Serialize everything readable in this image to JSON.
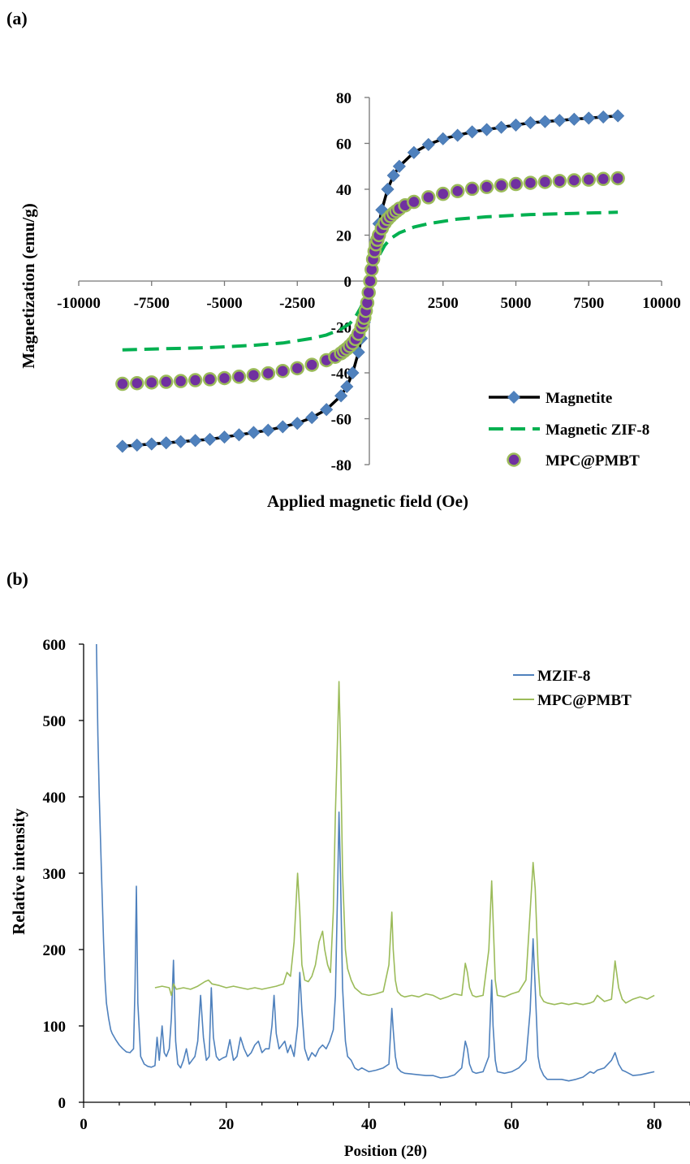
{
  "chart_data": [
    {
      "panel_label": "(a)",
      "type": "scatter",
      "xlabel": "Applied magnetic field (Oe)",
      "ylabel": "Magnetization (emu/g)",
      "xlim": [
        -10000,
        10000
      ],
      "ylim": [
        -80,
        80
      ],
      "x_ticks": [
        -10000,
        -7500,
        -5000,
        -2500,
        0,
        2500,
        5000,
        7500,
        10000
      ],
      "y_ticks": [
        -80,
        -60,
        -40,
        -20,
        0,
        20,
        40,
        60,
        80
      ],
      "legend_position": "bottom-right",
      "series": [
        {
          "name": "Magnetite",
          "style": "line with diamond markers",
          "line_color": "#000000",
          "marker_color": "#4F81BD",
          "x": [
            -8500,
            -8000,
            -7500,
            -7000,
            -6500,
            -6000,
            -5500,
            -5000,
            -4500,
            -4000,
            -3500,
            -3000,
            -2500,
            -2000,
            -1500,
            -1000,
            -800,
            -600,
            -400,
            -300,
            -200,
            -150,
            -100,
            -50,
            0,
            50,
            100,
            150,
            200,
            300,
            400,
            600,
            800,
            1000,
            1500,
            2000,
            2500,
            3000,
            3500,
            4000,
            4500,
            5000,
            5500,
            6000,
            6500,
            7000,
            7500,
            8000,
            8500
          ],
          "y": [
            -72,
            -71.5,
            -71,
            -70.5,
            -70,
            -69.5,
            -69,
            -68,
            -67,
            -66,
            -65,
            -63.5,
            -62,
            -59.5,
            -56,
            -50,
            -46,
            -40,
            -31,
            -25,
            -18,
            -14,
            -9.5,
            -5,
            0,
            5,
            9.5,
            14,
            18,
            25,
            31,
            40,
            46,
            50,
            56,
            59.5,
            62,
            63.5,
            65,
            66,
            67,
            68,
            69,
            69.5,
            70,
            70.5,
            71,
            71.5,
            72
          ]
        },
        {
          "name": "Magnetic ZIF-8",
          "style": "dashed line",
          "line_color": "#00B050",
          "x": [
            -8500,
            -7000,
            -5500,
            -4000,
            -3000,
            -2000,
            -1500,
            -1000,
            -700,
            -500,
            -300,
            -150,
            0,
            150,
            300,
            500,
            700,
            1000,
            1500,
            2000,
            3000,
            4000,
            5500,
            7000,
            8500
          ],
          "y": [
            -30,
            -29.5,
            -29,
            -28,
            -27,
            -25,
            -23.5,
            -21,
            -18.5,
            -15.5,
            -11,
            -6,
            0,
            6,
            11,
            15.5,
            18.5,
            21,
            23.5,
            25,
            27,
            28,
            29,
            29.5,
            30
          ]
        },
        {
          "name": "MPC@PMBT",
          "style": "circle markers",
          "marker_color": "#7030A0",
          "marker_stroke": "#9BBB59",
          "x": [
            -8500,
            -8000,
            -7500,
            -7000,
            -6500,
            -6000,
            -5500,
            -5000,
            -4500,
            -4000,
            -3500,
            -3000,
            -2500,
            -2000,
            -1500,
            -1200,
            -1000,
            -900,
            -800,
            -700,
            -600,
            -500,
            -400,
            -300,
            -250,
            -200,
            -150,
            -100,
            -50,
            0,
            50,
            100,
            150,
            200,
            250,
            300,
            400,
            500,
            600,
            700,
            800,
            900,
            1000,
            1200,
            1500,
            2000,
            2500,
            3000,
            3500,
            4000,
            4500,
            5000,
            5500,
            6000,
            6500,
            7000,
            7500,
            8000,
            8500
          ],
          "y": [
            -44.8,
            -44.5,
            -44.2,
            -43.9,
            -43.6,
            -43.2,
            -42.8,
            -42.3,
            -41.7,
            -41,
            -40.2,
            -39.2,
            -38,
            -36.5,
            -34.5,
            -33,
            -31.5,
            -30.5,
            -29.5,
            -28.3,
            -27,
            -25.3,
            -23,
            -20,
            -18,
            -16,
            -13,
            -9.5,
            -5,
            0,
            5,
            9.5,
            13,
            16,
            18,
            20,
            23,
            25.3,
            27,
            28.3,
            29.5,
            30.5,
            31.5,
            33,
            34.5,
            36.5,
            38,
            39.2,
            40.2,
            41,
            41.7,
            42.3,
            42.8,
            43.2,
            43.6,
            43.9,
            44.2,
            44.5,
            44.8
          ]
        }
      ]
    },
    {
      "panel_label": "(b)",
      "type": "line",
      "xlabel": "Position (2θ)",
      "ylabel": "Relative intensity",
      "xlim": [
        0,
        85
      ],
      "ylim": [
        0,
        600
      ],
      "x_ticks": [
        0,
        20,
        40,
        60,
        80
      ],
      "y_ticks": [
        0,
        100,
        200,
        300,
        400,
        500,
        600
      ],
      "grid": false,
      "legend_position": "top-right",
      "series": [
        {
          "name": "MZIF-8",
          "color": "#4F81BD",
          "x": [
            1.8,
            2.0,
            2.2,
            2.5,
            2.8,
            3.0,
            3.2,
            3.5,
            3.8,
            4.0,
            4.5,
            5.0,
            5.5,
            6.0,
            6.5,
            7.0,
            7.2,
            7.4,
            7.6,
            8.0,
            8.5,
            9.0,
            9.5,
            10.0,
            10.3,
            10.6,
            11.0,
            11.3,
            11.6,
            12.0,
            12.3,
            12.6,
            12.9,
            13.2,
            13.6,
            14.0,
            14.4,
            14.8,
            15.2,
            15.6,
            16.0,
            16.4,
            16.8,
            17.2,
            17.6,
            17.9,
            18.2,
            18.6,
            19.0,
            19.5,
            20.0,
            20.5,
            21.0,
            21.5,
            22.0,
            22.5,
            23.0,
            23.5,
            24.0,
            24.5,
            25.0,
            25.5,
            26.0,
            26.4,
            26.7,
            27.0,
            27.4,
            27.8,
            28.2,
            28.6,
            29.0,
            29.5,
            30.0,
            30.3,
            30.6,
            31.0,
            31.5,
            32.0,
            32.5,
            33.0,
            33.5,
            34.0,
            34.5,
            35.0,
            35.3,
            35.6,
            35.8,
            36.0,
            36.3,
            36.7,
            37.0,
            37.5,
            38.0,
            38.5,
            39.0,
            40.0,
            41.0,
            42.0,
            42.8,
            43.2,
            43.4,
            43.7,
            44.0,
            44.5,
            45.0,
            46.0,
            47.0,
            48.0,
            49.0,
            50.0,
            51.0,
            52.0,
            53.0,
            53.5,
            53.8,
            54.1,
            54.5,
            55.0,
            56.0,
            56.8,
            57.2,
            57.4,
            57.7,
            58.0,
            59.0,
            60.0,
            61.0,
            62.0,
            62.6,
            63.0,
            63.3,
            63.7,
            64.0,
            64.5,
            65.0,
            66.0,
            67.0,
            68.0,
            69.0,
            70.0,
            71.0,
            71.5,
            72.0,
            73.0,
            74.0,
            74.5,
            75.0,
            75.5,
            76.0,
            77.0,
            78.0,
            79.0,
            80.0
          ],
          "y": [
            600,
            480,
            400,
            300,
            210,
            160,
            130,
            110,
            95,
            90,
            82,
            75,
            70,
            66,
            65,
            70,
            150,
            283,
            130,
            60,
            50,
            47,
            46,
            48,
            85,
            55,
            100,
            65,
            60,
            70,
            110,
            186,
            80,
            50,
            45,
            55,
            70,
            50,
            55,
            60,
            80,
            140,
            85,
            55,
            60,
            150,
            85,
            60,
            55,
            58,
            60,
            82,
            55,
            60,
            85,
            70,
            60,
            65,
            75,
            80,
            65,
            70,
            70,
            100,
            140,
            90,
            70,
            75,
            80,
            65,
            75,
            60,
            100,
            170,
            120,
            70,
            55,
            65,
            60,
            70,
            75,
            70,
            80,
            95,
            140,
            280,
            380,
            300,
            150,
            80,
            60,
            55,
            45,
            42,
            45,
            40,
            42,
            45,
            50,
            123,
            95,
            60,
            45,
            40,
            38,
            37,
            36,
            35,
            35,
            32,
            33,
            36,
            45,
            80,
            70,
            50,
            40,
            38,
            40,
            60,
            160,
            100,
            55,
            40,
            38,
            40,
            45,
            55,
            120,
            214,
            150,
            60,
            45,
            35,
            30,
            30,
            30,
            28,
            30,
            33,
            40,
            38,
            42,
            45,
            55,
            65,
            50,
            42,
            40,
            35,
            36,
            38,
            40
          ]
        },
        {
          "name": "MPC@PMBT",
          "color": "#9BBB59",
          "x": [
            10.0,
            11.0,
            12.0,
            12.3,
            12.6,
            13.0,
            14.0,
            15.0,
            16.0,
            17.0,
            17.5,
            18.0,
            19.0,
            20.0,
            21.0,
            22.0,
            23.0,
            24.0,
            25.0,
            26.0,
            27.0,
            28.0,
            28.5,
            29.0,
            29.5,
            30.0,
            30.3,
            30.6,
            31.0,
            31.5,
            32.0,
            32.5,
            33.0,
            33.5,
            33.8,
            34.2,
            34.6,
            35.0,
            35.3,
            35.6,
            35.8,
            36.0,
            36.3,
            36.7,
            37.0,
            37.5,
            38.0,
            39.0,
            40.0,
            41.0,
            42.0,
            42.8,
            43.2,
            43.4,
            43.7,
            44.0,
            44.5,
            45.0,
            46.0,
            47.0,
            48.0,
            49.0,
            50.0,
            51.0,
            52.0,
            53.0,
            53.5,
            53.8,
            54.1,
            54.5,
            55.0,
            56.0,
            56.8,
            57.2,
            57.4,
            57.7,
            58.0,
            59.0,
            60.0,
            61.0,
            62.0,
            62.6,
            63.0,
            63.3,
            63.7,
            64.0,
            64.5,
            65.0,
            66.0,
            67.0,
            68.0,
            69.0,
            70.0,
            71.0,
            71.5,
            72.0,
            73.0,
            74.0,
            74.5,
            75.0,
            75.5,
            76.0,
            77.0,
            78.0,
            79.0,
            80.0
          ],
          "y": [
            150,
            152,
            150,
            140,
            155,
            148,
            150,
            148,
            152,
            158,
            160,
            155,
            153,
            150,
            152,
            150,
            148,
            150,
            148,
            150,
            152,
            155,
            170,
            165,
            210,
            300,
            250,
            180,
            160,
            158,
            165,
            180,
            210,
            224,
            200,
            180,
            170,
            250,
            380,
            480,
            551,
            470,
            300,
            200,
            175,
            160,
            150,
            142,
            140,
            142,
            145,
            180,
            249,
            200,
            160,
            145,
            140,
            138,
            140,
            138,
            142,
            140,
            135,
            138,
            142,
            140,
            182,
            170,
            150,
            140,
            138,
            140,
            200,
            290,
            240,
            160,
            140,
            138,
            142,
            145,
            160,
            250,
            314,
            280,
            180,
            140,
            132,
            130,
            128,
            130,
            128,
            130,
            128,
            130,
            132,
            140,
            132,
            135,
            185,
            150,
            135,
            130,
            135,
            138,
            135,
            140
          ]
        }
      ]
    }
  ]
}
